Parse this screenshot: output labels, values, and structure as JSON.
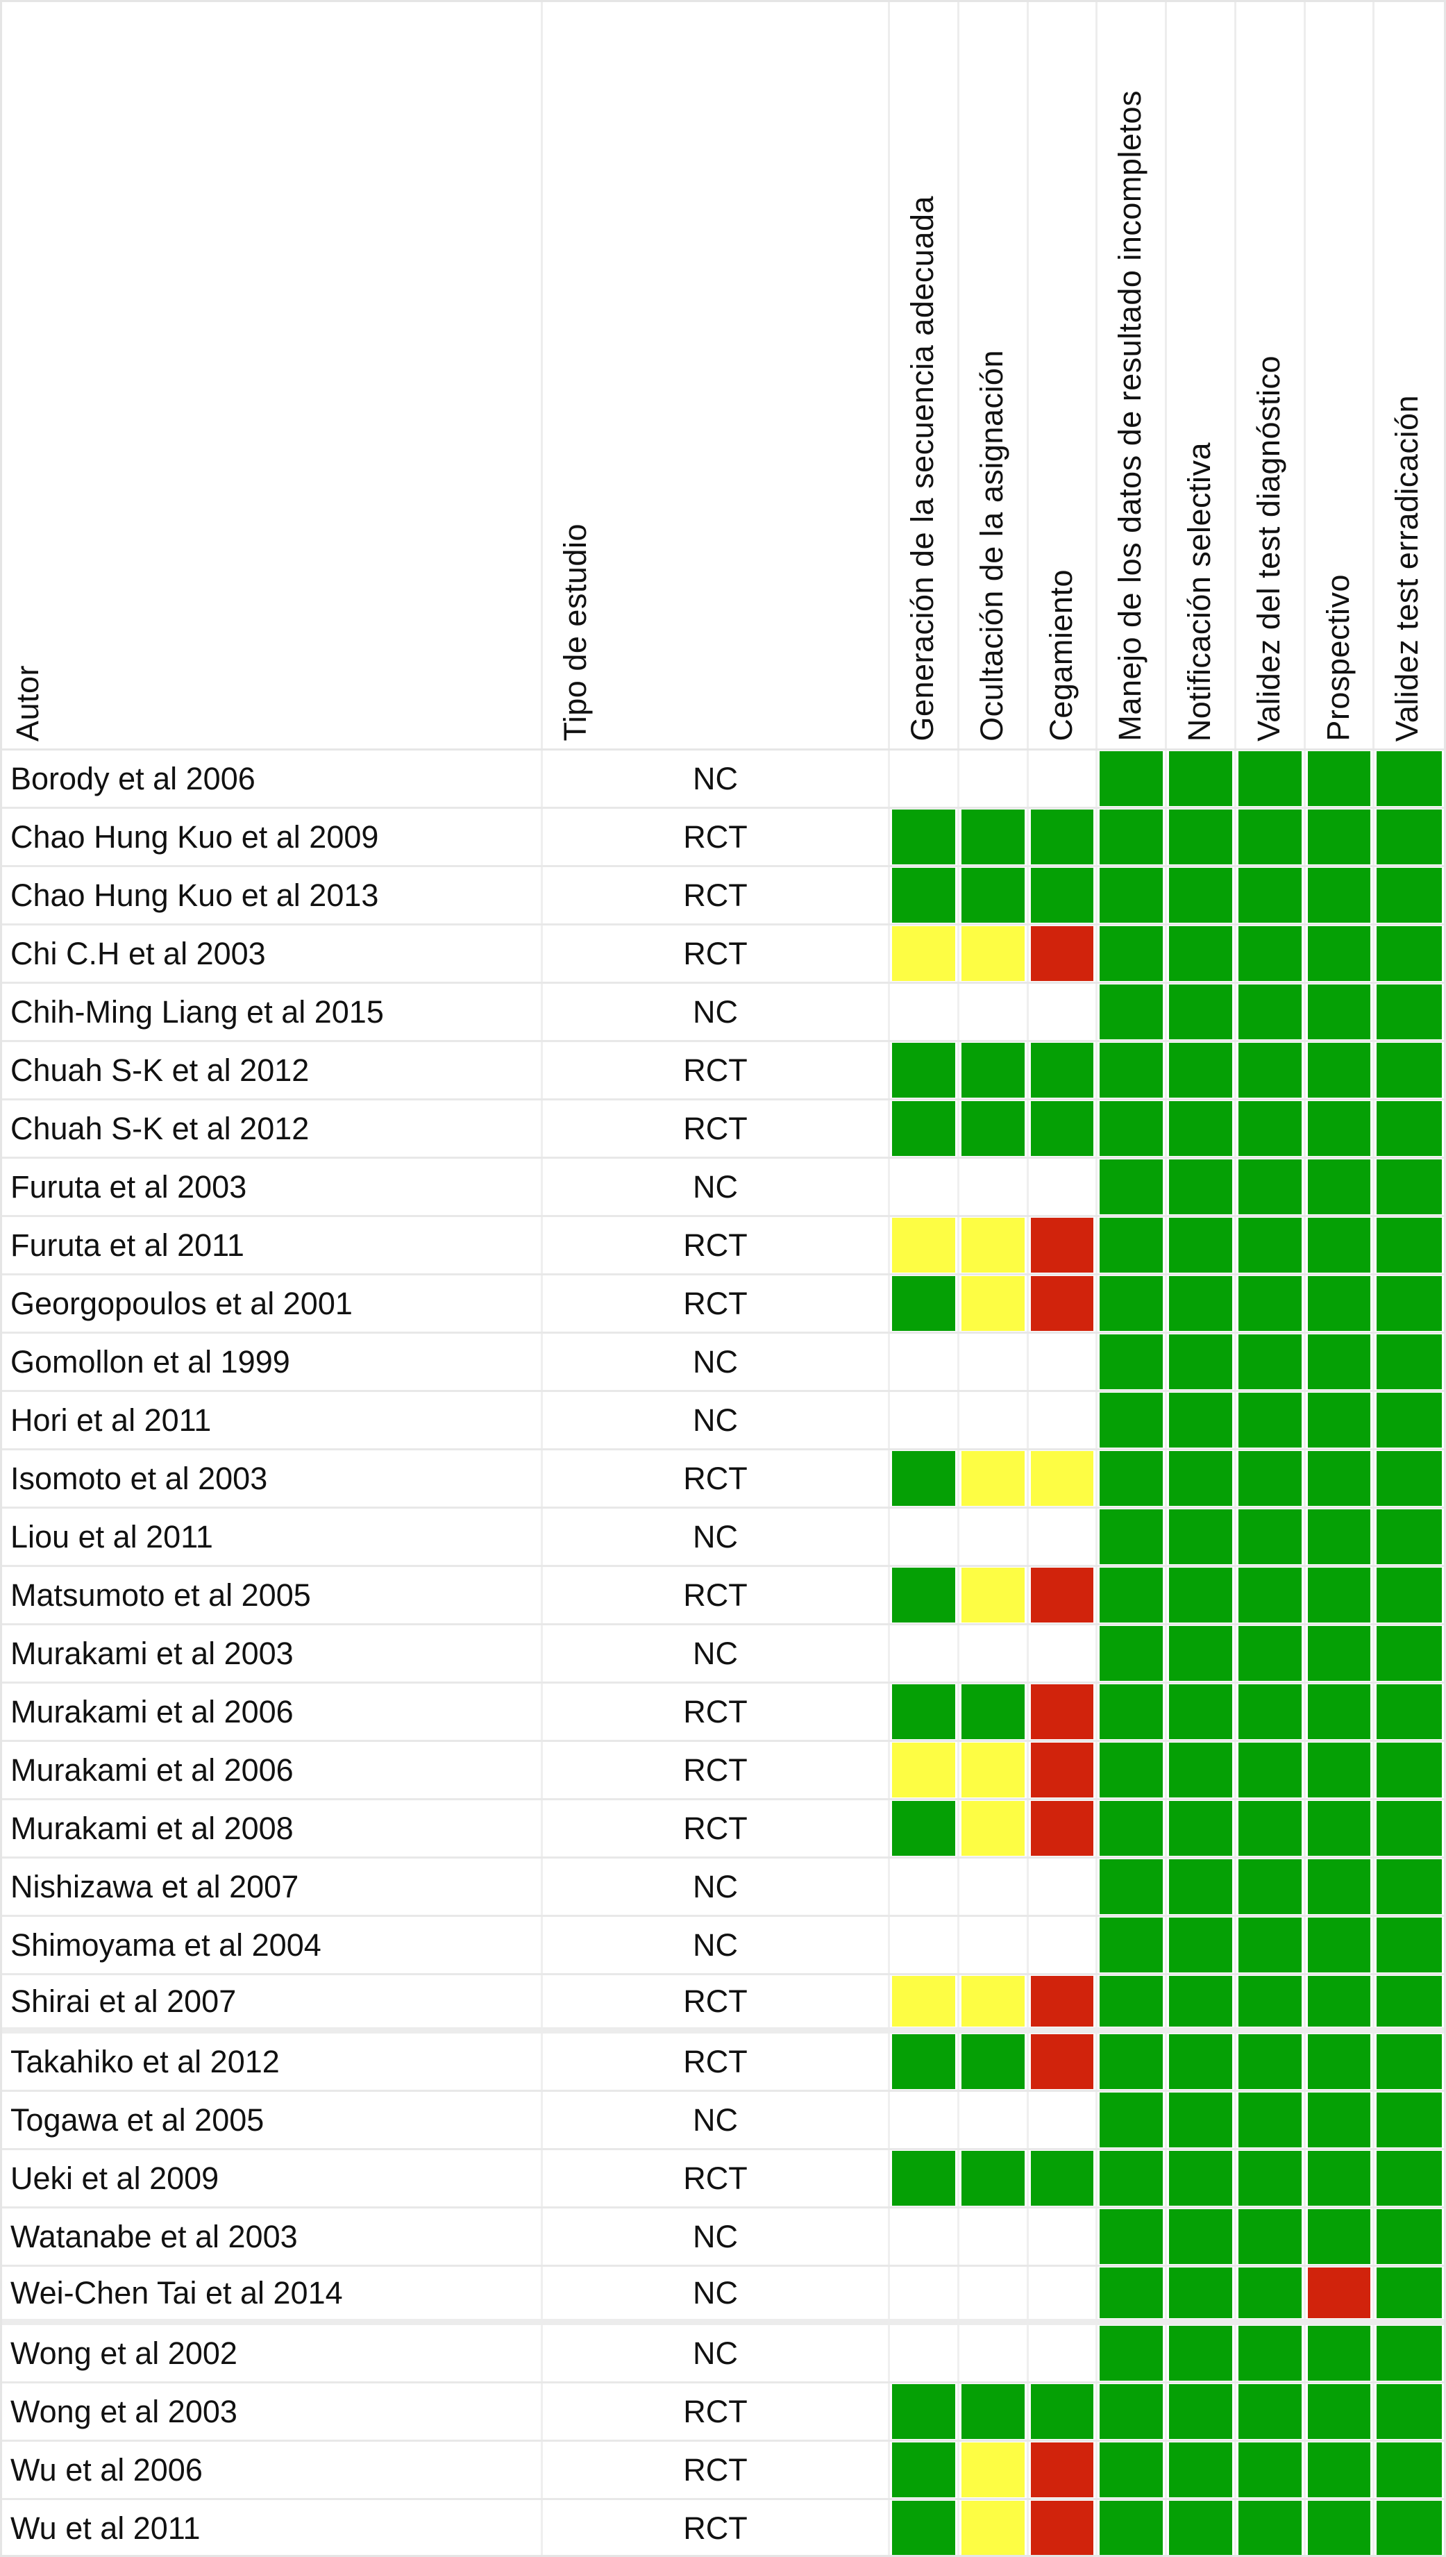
{
  "chart_data": {
    "type": "heatmap",
    "title": "",
    "row_header": "Autor",
    "type_header": "Tipo de estudio",
    "columns": [
      "Generación de la secuencia adecuada",
      "Ocultación de la asignación",
      "Cegamiento",
      "Manejo de los datos de resultado incompletos",
      "Notificación selectiva",
      "Validez del test diagnóstico",
      "Prospectivo",
      "Validez test erradicación"
    ],
    "rating_scale": [
      "green",
      "yellow",
      "red",
      "none"
    ],
    "colors": {
      "green": "#05a005",
      "yellow": "#fdfd44",
      "red": "#d1230c",
      "none": "#ffffff"
    },
    "rows": [
      {
        "autor": "Borody et al 2006",
        "tipo": "NC",
        "ratings": [
          "none",
          "none",
          "none",
          "green",
          "green",
          "green",
          "green",
          "green"
        ],
        "group_end": false
      },
      {
        "autor": "Chao Hung Kuo et al 2009",
        "tipo": "RCT",
        "ratings": [
          "green",
          "green",
          "green",
          "green",
          "green",
          "green",
          "green",
          "green"
        ],
        "group_end": false
      },
      {
        "autor": "Chao Hung Kuo et al 2013",
        "tipo": "RCT",
        "ratings": [
          "green",
          "green",
          "green",
          "green",
          "green",
          "green",
          "green",
          "green"
        ],
        "group_end": false
      },
      {
        "autor": "Chi C.H et al 2003",
        "tipo": "RCT",
        "ratings": [
          "yellow",
          "yellow",
          "red",
          "green",
          "green",
          "green",
          "green",
          "green"
        ],
        "group_end": false
      },
      {
        "autor": "Chih-Ming Liang et al 2015",
        "tipo": "NC",
        "ratings": [
          "none",
          "none",
          "none",
          "green",
          "green",
          "green",
          "green",
          "green"
        ],
        "group_end": false
      },
      {
        "autor": "Chuah S-K et al 2012",
        "tipo": "RCT",
        "ratings": [
          "green",
          "green",
          "green",
          "green",
          "green",
          "green",
          "green",
          "green"
        ],
        "group_end": false
      },
      {
        "autor": "Chuah S-K et al 2012",
        "tipo": "RCT",
        "ratings": [
          "green",
          "green",
          "green",
          "green",
          "green",
          "green",
          "green",
          "green"
        ],
        "group_end": false
      },
      {
        "autor": "Furuta et al 2003",
        "tipo": "NC",
        "ratings": [
          "none",
          "none",
          "none",
          "green",
          "green",
          "green",
          "green",
          "green"
        ],
        "group_end": false
      },
      {
        "autor": "Furuta et al 2011",
        "tipo": "RCT",
        "ratings": [
          "yellow",
          "yellow",
          "red",
          "green",
          "green",
          "green",
          "green",
          "green"
        ],
        "group_end": false
      },
      {
        "autor": "Georgopoulos et al 2001",
        "tipo": "RCT",
        "ratings": [
          "green",
          "yellow",
          "red",
          "green",
          "green",
          "green",
          "green",
          "green"
        ],
        "group_end": false
      },
      {
        "autor": "Gomollon et al 1999",
        "tipo": "NC",
        "ratings": [
          "none",
          "none",
          "none",
          "green",
          "green",
          "green",
          "green",
          "green"
        ],
        "group_end": false
      },
      {
        "autor": "Hori et al 2011",
        "tipo": "NC",
        "ratings": [
          "none",
          "none",
          "none",
          "green",
          "green",
          "green",
          "green",
          "green"
        ],
        "group_end": false
      },
      {
        "autor": "Isomoto et al 2003",
        "tipo": "RCT",
        "ratings": [
          "green",
          "yellow",
          "yellow",
          "green",
          "green",
          "green",
          "green",
          "green"
        ],
        "group_end": false
      },
      {
        "autor": "Liou et al 2011",
        "tipo": "NC",
        "ratings": [
          "none",
          "none",
          "none",
          "green",
          "green",
          "green",
          "green",
          "green"
        ],
        "group_end": false
      },
      {
        "autor": "Matsumoto et al 2005",
        "tipo": "RCT",
        "ratings": [
          "green",
          "yellow",
          "red",
          "green",
          "green",
          "green",
          "green",
          "green"
        ],
        "group_end": false
      },
      {
        "autor": "Murakami et al 2003",
        "tipo": "NC",
        "ratings": [
          "none",
          "none",
          "none",
          "green",
          "green",
          "green",
          "green",
          "green"
        ],
        "group_end": false
      },
      {
        "autor": "Murakami et al 2006",
        "tipo": "RCT",
        "ratings": [
          "green",
          "green",
          "red",
          "green",
          "green",
          "green",
          "green",
          "green"
        ],
        "group_end": false
      },
      {
        "autor": "Murakami et al 2006",
        "tipo": "RCT",
        "ratings": [
          "yellow",
          "yellow",
          "red",
          "green",
          "green",
          "green",
          "green",
          "green"
        ],
        "group_end": false
      },
      {
        "autor": "Murakami et al 2008",
        "tipo": "RCT",
        "ratings": [
          "green",
          "yellow",
          "red",
          "green",
          "green",
          "green",
          "green",
          "green"
        ],
        "group_end": false
      },
      {
        "autor": "Nishizawa et al 2007",
        "tipo": "NC",
        "ratings": [
          "none",
          "none",
          "none",
          "green",
          "green",
          "green",
          "green",
          "green"
        ],
        "group_end": false
      },
      {
        "autor": "Shimoyama et al 2004",
        "tipo": "NC",
        "ratings": [
          "none",
          "none",
          "none",
          "green",
          "green",
          "green",
          "green",
          "green"
        ],
        "group_end": false
      },
      {
        "autor": "Shirai et al 2007",
        "tipo": "RCT",
        "ratings": [
          "yellow",
          "yellow",
          "red",
          "green",
          "green",
          "green",
          "green",
          "green"
        ],
        "group_end": true
      },
      {
        "autor": "Takahiko et al 2012",
        "tipo": "RCT",
        "ratings": [
          "green",
          "green",
          "red",
          "green",
          "green",
          "green",
          "green",
          "green"
        ],
        "group_end": false
      },
      {
        "autor": "Togawa et al 2005",
        "tipo": "NC",
        "ratings": [
          "none",
          "none",
          "none",
          "green",
          "green",
          "green",
          "green",
          "green"
        ],
        "group_end": false
      },
      {
        "autor": "Ueki et al 2009",
        "tipo": "RCT",
        "ratings": [
          "green",
          "green",
          "green",
          "green",
          "green",
          "green",
          "green",
          "green"
        ],
        "group_end": false
      },
      {
        "autor": "Watanabe et al 2003",
        "tipo": "NC",
        "ratings": [
          "none",
          "none",
          "none",
          "green",
          "green",
          "green",
          "green",
          "green"
        ],
        "group_end": false
      },
      {
        "autor": "Wei-Chen Tai et al 2014",
        "tipo": "NC",
        "ratings": [
          "none",
          "none",
          "none",
          "green",
          "green",
          "green",
          "red",
          "green"
        ],
        "group_end": true
      },
      {
        "autor": "Wong et al 2002",
        "tipo": "NC",
        "ratings": [
          "none",
          "none",
          "none",
          "green",
          "green",
          "green",
          "green",
          "green"
        ],
        "group_end": false
      },
      {
        "autor": "Wong et al 2003",
        "tipo": "RCT",
        "ratings": [
          "green",
          "green",
          "green",
          "green",
          "green",
          "green",
          "green",
          "green"
        ],
        "group_end": false
      },
      {
        "autor": "Wu et al 2006",
        "tipo": "RCT",
        "ratings": [
          "green",
          "yellow",
          "red",
          "green",
          "green",
          "green",
          "green",
          "green"
        ],
        "group_end": false
      },
      {
        "autor": "Wu et al 2011",
        "tipo": "RCT",
        "ratings": [
          "green",
          "yellow",
          "red",
          "green",
          "green",
          "green",
          "green",
          "green"
        ],
        "group_end": false
      }
    ]
  }
}
